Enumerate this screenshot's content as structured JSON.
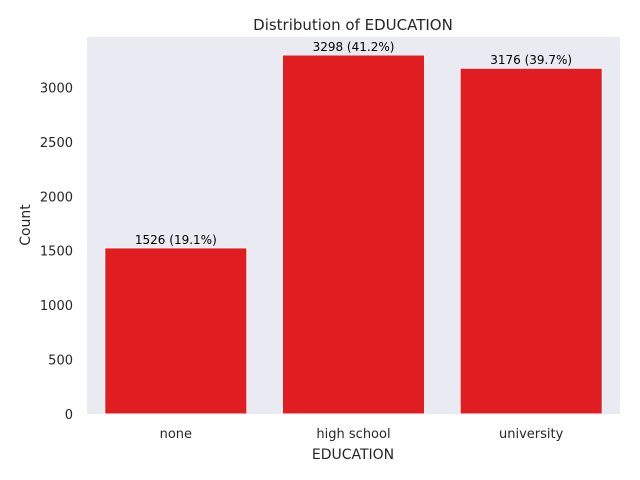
{
  "chart_data": {
    "type": "bar",
    "title": "Distribution of EDUCATION",
    "xlabel": "EDUCATION",
    "ylabel": "Count",
    "categories": [
      "none",
      "high school",
      "university"
    ],
    "values": [
      1526,
      3298,
      3176
    ],
    "data_labels": [
      "1526 (19.1%)",
      "3298 (41.2%)",
      "3176 (39.7%)"
    ],
    "yticks": [
      0,
      500,
      1000,
      1500,
      2000,
      2500,
      3000
    ],
    "ylim": [
      0,
      3462.9
    ],
    "grid": false,
    "legend": "none"
  },
  "colors": {
    "bar": "#e01e22",
    "plot_background": "#eaeaf2",
    "bar_edge": "#ffffff"
  }
}
